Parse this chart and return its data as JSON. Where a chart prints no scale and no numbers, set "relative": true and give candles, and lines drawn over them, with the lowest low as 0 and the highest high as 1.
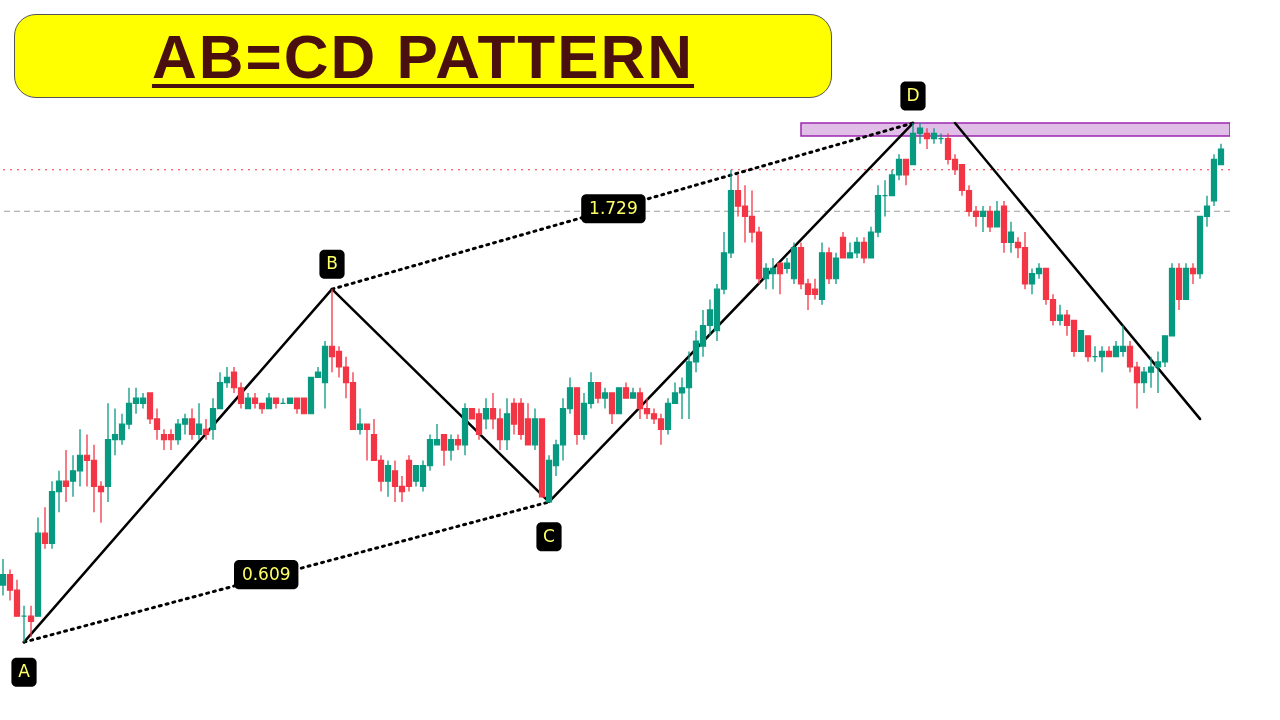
{
  "chart_data": {
    "type": "candlestick",
    "title": "AB=CD PATTERN",
    "relative": true,
    "annotations": [
      "A",
      "B",
      "C",
      "D",
      "0.609",
      "1.729"
    ],
    "categories": [
      null,
      null,
      null,
      null,
      null,
      null,
      null,
      null,
      null,
      null,
      null,
      null,
      null,
      null,
      null,
      null,
      null,
      null,
      null,
      null,
      null,
      null,
      null,
      null,
      null,
      null,
      null,
      null,
      null,
      null,
      null,
      null,
      null,
      null,
      null,
      null,
      null,
      null,
      null,
      null,
      null,
      null,
      null,
      null,
      null,
      null,
      null,
      null,
      null,
      null,
      null,
      null,
      null,
      null,
      null,
      null,
      null,
      null,
      null,
      null,
      null,
      null,
      null,
      null,
      null,
      null,
      null,
      null,
      null,
      null,
      null,
      null,
      null,
      null,
      null,
      null,
      null,
      null,
      null,
      null,
      null,
      null,
      null,
      null,
      null,
      null,
      null,
      null,
      null,
      null,
      null,
      null,
      null,
      null,
      null,
      null,
      null,
      null,
      null,
      null,
      null,
      null,
      null,
      null,
      null,
      null,
      null,
      null,
      null,
      null,
      null,
      null,
      null,
      null,
      null,
      null,
      null,
      null,
      null,
      null,
      null,
      null,
      null,
      null,
      null,
      null,
      null,
      null,
      null,
      null,
      null,
      null,
      null,
      null,
      null,
      null,
      null,
      null,
      null,
      null,
      null,
      null,
      null,
      null,
      null,
      null,
      null,
      null,
      null,
      null,
      null,
      null,
      null,
      null,
      null,
      null,
      null,
      null,
      null,
      null,
      null,
      null,
      null,
      null,
      null,
      null,
      null,
      null,
      null,
      null,
      null,
      null,
      null,
      null,
      null
    ],
    "ohlc": [
      [
        0.11,
        0.16,
        0.09,
        0.13
      ],
      [
        0.13,
        0.14,
        0.08,
        0.1
      ],
      [
        0.1,
        0.12,
        0.05,
        0.05
      ],
      [
        0.05,
        0.07,
        0.0,
        0.05
      ],
      [
        0.05,
        0.07,
        0.01,
        0.04
      ],
      [
        0.05,
        0.24,
        0.05,
        0.21
      ],
      [
        0.21,
        0.26,
        0.18,
        0.19
      ],
      [
        0.19,
        0.31,
        0.18,
        0.29
      ],
      [
        0.29,
        0.33,
        0.25,
        0.31
      ],
      [
        0.31,
        0.37,
        0.27,
        0.3
      ],
      [
        0.31,
        0.36,
        0.28,
        0.33
      ],
      [
        0.33,
        0.41,
        0.3,
        0.36
      ],
      [
        0.36,
        0.4,
        0.3,
        0.35
      ],
      [
        0.35,
        0.38,
        0.25,
        0.3
      ],
      [
        0.3,
        0.31,
        0.23,
        0.29
      ],
      [
        0.3,
        0.46,
        0.27,
        0.39
      ],
      [
        0.39,
        0.45,
        0.36,
        0.4
      ],
      [
        0.39,
        0.44,
        0.38,
        0.42
      ],
      [
        0.42,
        0.49,
        0.41,
        0.46
      ],
      [
        0.46,
        0.49,
        0.44,
        0.47
      ],
      [
        0.46,
        0.48,
        0.45,
        0.47
      ],
      [
        0.48,
        0.48,
        0.42,
        0.43
      ],
      [
        0.43,
        0.45,
        0.39,
        0.41
      ],
      [
        0.4,
        0.41,
        0.37,
        0.39
      ],
      [
        0.4,
        0.41,
        0.37,
        0.39
      ],
      [
        0.39,
        0.43,
        0.38,
        0.42
      ],
      [
        0.42,
        0.44,
        0.4,
        0.43
      ],
      [
        0.43,
        0.45,
        0.39,
        0.4
      ],
      [
        0.4,
        0.46,
        0.39,
        0.42
      ],
      [
        0.41,
        0.43,
        0.39,
        0.4
      ],
      [
        0.41,
        0.47,
        0.39,
        0.45
      ],
      [
        0.45,
        0.52,
        0.45,
        0.5
      ],
      [
        0.5,
        0.53,
        0.49,
        0.51
      ],
      [
        0.52,
        0.53,
        0.48,
        0.49
      ],
      [
        0.49,
        0.5,
        0.45,
        0.46
      ],
      [
        0.45,
        0.48,
        0.45,
        0.47
      ],
      [
        0.47,
        0.48,
        0.45,
        0.46
      ],
      [
        0.46,
        0.46,
        0.44,
        0.45
      ],
      [
        0.45,
        0.48,
        0.45,
        0.47
      ],
      [
        0.47,
        0.47,
        0.45,
        0.46
      ],
      [
        0.46,
        0.47,
        0.46,
        0.46
      ],
      [
        0.46,
        0.47,
        0.46,
        0.47
      ],
      [
        0.47,
        0.47,
        0.44,
        0.45
      ],
      [
        0.47,
        0.47,
        0.44,
        0.44
      ],
      [
        0.44,
        0.51,
        0.44,
        0.51
      ],
      [
        0.51,
        0.53,
        0.51,
        0.52
      ],
      [
        0.5,
        0.58,
        0.45,
        0.57
      ],
      [
        0.57,
        0.68,
        0.52,
        0.55
      ],
      [
        0.56,
        0.57,
        0.51,
        0.53
      ],
      [
        0.53,
        0.55,
        0.47,
        0.5
      ],
      [
        0.5,
        0.52,
        0.41,
        0.41
      ],
      [
        0.41,
        0.45,
        0.4,
        0.42
      ],
      [
        0.42,
        0.42,
        0.35,
        0.41
      ],
      [
        0.4,
        0.43,
        0.35,
        0.35
      ],
      [
        0.35,
        0.36,
        0.29,
        0.31
      ],
      [
        0.31,
        0.35,
        0.28,
        0.34
      ],
      [
        0.33,
        0.35,
        0.27,
        0.3
      ],
      [
        0.3,
        0.32,
        0.27,
        0.29
      ],
      [
        0.35,
        0.36,
        0.29,
        0.3
      ],
      [
        0.31,
        0.34,
        0.3,
        0.34
      ],
      [
        0.3,
        0.35,
        0.29,
        0.34
      ],
      [
        0.34,
        0.4,
        0.33,
        0.39
      ],
      [
        0.38,
        0.42,
        0.38,
        0.39
      ],
      [
        0.4,
        0.4,
        0.34,
        0.37
      ],
      [
        0.37,
        0.4,
        0.35,
        0.39
      ],
      [
        0.39,
        0.4,
        0.37,
        0.38
      ],
      [
        0.38,
        0.46,
        0.36,
        0.45
      ],
      [
        0.45,
        0.45,
        0.43,
        0.43
      ],
      [
        0.44,
        0.45,
        0.39,
        0.4
      ],
      [
        0.43,
        0.47,
        0.41,
        0.45
      ],
      [
        0.45,
        0.48,
        0.41,
        0.43
      ],
      [
        0.43,
        0.45,
        0.37,
        0.39
      ],
      [
        0.39,
        0.47,
        0.37,
        0.44
      ],
      [
        0.46,
        0.47,
        0.4,
        0.42
      ],
      [
        0.46,
        0.47,
        0.39,
        0.4
      ],
      [
        0.43,
        0.46,
        0.38,
        0.38
      ],
      [
        0.38,
        0.45,
        0.37,
        0.43
      ],
      [
        0.43,
        0.43,
        0.28,
        0.28
      ],
      [
        0.27,
        0.36,
        0.27,
        0.35
      ],
      [
        0.34,
        0.39,
        0.32,
        0.38
      ],
      [
        0.38,
        0.47,
        0.35,
        0.45
      ],
      [
        0.45,
        0.51,
        0.44,
        0.49
      ],
      [
        0.49,
        0.49,
        0.38,
        0.4
      ],
      [
        0.4,
        0.48,
        0.39,
        0.46
      ],
      [
        0.46,
        0.52,
        0.45,
        0.5
      ],
      [
        0.5,
        0.5,
        0.46,
        0.47
      ],
      [
        0.47,
        0.49,
        0.45,
        0.48
      ],
      [
        0.48,
        0.48,
        0.42,
        0.44
      ],
      [
        0.44,
        0.49,
        0.44,
        0.49
      ],
      [
        0.49,
        0.5,
        0.47,
        0.47
      ],
      [
        0.47,
        0.49,
        0.47,
        0.48
      ],
      [
        0.48,
        0.49,
        0.43,
        0.45
      ],
      [
        0.45,
        0.47,
        0.43,
        0.44
      ],
      [
        0.44,
        0.45,
        0.42,
        0.43
      ],
      [
        0.43,
        0.44,
        0.38,
        0.41
      ],
      [
        0.41,
        0.47,
        0.4,
        0.46
      ],
      [
        0.46,
        0.5,
        0.46,
        0.48
      ],
      [
        0.48,
        0.51,
        0.43,
        0.49
      ],
      [
        0.49,
        0.56,
        0.43,
        0.54
      ],
      [
        0.54,
        0.6,
        0.52,
        0.58
      ],
      [
        0.57,
        0.64,
        0.55,
        0.61
      ],
      [
        0.61,
        0.66,
        0.59,
        0.64
      ],
      [
        0.6,
        0.69,
        0.58,
        0.68
      ],
      [
        0.68,
        0.79,
        0.67,
        0.75
      ],
      [
        0.75,
        0.91,
        0.74,
        0.87
      ],
      [
        0.87,
        0.9,
        0.82,
        0.84
      ],
      [
        0.84,
        0.88,
        0.77,
        0.82
      ],
      [
        0.82,
        0.87,
        0.77,
        0.79
      ],
      [
        0.79,
        0.8,
        0.69,
        0.7
      ],
      [
        0.7,
        0.73,
        0.68,
        0.72
      ],
      [
        0.71,
        0.74,
        0.68,
        0.72
      ],
      [
        0.73,
        0.73,
        0.67,
        0.71
      ],
      [
        0.72,
        0.74,
        0.71,
        0.73
      ],
      [
        0.7,
        0.77,
        0.69,
        0.76
      ],
      [
        0.76,
        0.77,
        0.68,
        0.69
      ],
      [
        0.69,
        0.7,
        0.64,
        0.67
      ],
      [
        0.68,
        0.7,
        0.66,
        0.67
      ],
      [
        0.66,
        0.77,
        0.65,
        0.75
      ],
      [
        0.75,
        0.76,
        0.69,
        0.7
      ],
      [
        0.7,
        0.75,
        0.69,
        0.74
      ],
      [
        0.78,
        0.79,
        0.74,
        0.74
      ],
      [
        0.74,
        0.77,
        0.74,
        0.75
      ],
      [
        0.75,
        0.78,
        0.74,
        0.77
      ],
      [
        0.77,
        0.78,
        0.73,
        0.74
      ],
      [
        0.74,
        0.8,
        0.74,
        0.79
      ],
      [
        0.79,
        0.88,
        0.78,
        0.86
      ],
      [
        0.86,
        0.89,
        0.82,
        0.86
      ],
      [
        0.86,
        0.91,
        0.86,
        0.9
      ],
      [
        0.9,
        0.94,
        0.89,
        0.93
      ],
      [
        0.93,
        0.93,
        0.88,
        0.9
      ],
      [
        0.92,
        1.0,
        0.92,
        0.98
      ],
      [
        0.98,
        1.0,
        0.96,
        0.99
      ],
      [
        0.98,
        0.99,
        0.95,
        0.97
      ],
      [
        0.97,
        0.99,
        0.96,
        0.98
      ],
      [
        0.97,
        0.98,
        0.96,
        0.97
      ],
      [
        0.97,
        0.98,
        0.92,
        0.93
      ],
      [
        0.93,
        0.94,
        0.9,
        0.91
      ],
      [
        0.92,
        0.92,
        0.86,
        0.87
      ],
      [
        0.87,
        0.88,
        0.82,
        0.83
      ],
      [
        0.83,
        0.84,
        0.8,
        0.82
      ],
      [
        0.82,
        0.84,
        0.79,
        0.83
      ],
      [
        0.83,
        0.84,
        0.79,
        0.8
      ],
      [
        0.8,
        0.85,
        0.8,
        0.83
      ],
      [
        0.84,
        0.85,
        0.75,
        0.77
      ],
      [
        0.77,
        0.81,
        0.75,
        0.79
      ],
      [
        0.77,
        0.78,
        0.74,
        0.76
      ],
      [
        0.76,
        0.79,
        0.68,
        0.69
      ],
      [
        0.69,
        0.72,
        0.67,
        0.71
      ],
      [
        0.71,
        0.73,
        0.7,
        0.72
      ],
      [
        0.72,
        0.72,
        0.65,
        0.66
      ],
      [
        0.66,
        0.67,
        0.61,
        0.62
      ],
      [
        0.62,
        0.65,
        0.61,
        0.63
      ],
      [
        0.63,
        0.64,
        0.59,
        0.61
      ],
      [
        0.62,
        0.62,
        0.55,
        0.56
      ],
      [
        0.56,
        0.6,
        0.56,
        0.6
      ],
      [
        0.59,
        0.59,
        0.54,
        0.55
      ],
      [
        0.55,
        0.57,
        0.54,
        0.55
      ],
      [
        0.55,
        0.57,
        0.52,
        0.56
      ],
      [
        0.56,
        0.57,
        0.55,
        0.55
      ],
      [
        0.55,
        0.58,
        0.55,
        0.57
      ],
      [
        0.56,
        0.61,
        0.55,
        0.57
      ],
      [
        0.57,
        0.58,
        0.52,
        0.53
      ],
      [
        0.53,
        0.54,
        0.45,
        0.5
      ],
      [
        0.5,
        0.53,
        0.48,
        0.52
      ],
      [
        0.52,
        0.55,
        0.49,
        0.53
      ],
      [
        0.53,
        0.56,
        0.48,
        0.54
      ],
      [
        0.54,
        0.59,
        0.53,
        0.59
      ],
      [
        0.59,
        0.73,
        0.59,
        0.72
      ],
      [
        0.72,
        0.73,
        0.64,
        0.66
      ],
      [
        0.66,
        0.73,
        0.66,
        0.72
      ],
      [
        0.72,
        0.73,
        0.69,
        0.71
      ],
      [
        0.71,
        0.82,
        0.7,
        0.82
      ],
      [
        0.82,
        0.86,
        0.8,
        0.84
      ],
      [
        0.85,
        0.94,
        0.84,
        0.93
      ],
      [
        0.92,
        0.96,
        0.92,
        0.95
      ]
    ],
    "series": [
      {
        "type": "line",
        "color": "#000000",
        "values": [
          null,
          null,
          null,
          0.0,
          null,
          null,
          null,
          null,
          null,
          null,
          null,
          null,
          null,
          null,
          null,
          null,
          null,
          null,
          null,
          null,
          null,
          null,
          null,
          null,
          null,
          null,
          null,
          null,
          null,
          null,
          null,
          null,
          null,
          null,
          null,
          null,
          null,
          null,
          null,
          null,
          null,
          null,
          null,
          null,
          null,
          null,
          null,
          0.68,
          null,
          null,
          null,
          null,
          null,
          null,
          null,
          null,
          null,
          null,
          null,
          null,
          null,
          null,
          null,
          null,
          null,
          null,
          null,
          null,
          null,
          null,
          null,
          null,
          null,
          null,
          null,
          null,
          null,
          null,
          0.27,
          null,
          null,
          null,
          null,
          null,
          null,
          null,
          null,
          null,
          null,
          null,
          null,
          null,
          null,
          null,
          null,
          null,
          null,
          null,
          null,
          null,
          null,
          null,
          null,
          null,
          null,
          null,
          null,
          null,
          null,
          null,
          null,
          null,
          null,
          null,
          null,
          null,
          null,
          null,
          null,
          null,
          null,
          null,
          null,
          null,
          null,
          null,
          null,
          null,
          null,
          null,
          1.0,
          null,
          null,
          null,
          null,
          null,
          null,
          null,
          null,
          null,
          null,
          null,
          null,
          null,
          null,
          null,
          null,
          null,
          null,
          null,
          null,
          null,
          null,
          null,
          null,
          null,
          null,
          null,
          null,
          null,
          null,
          null,
          null,
          null,
          null,
          null,
          null,
          null,
          null,
          null,
          null,
          null,
          null,
          null,
          null
        ]
      },
      {
        "type": "line",
        "color": "#000000",
        "values": [
          null,
          null,
          null,
          null,
          null,
          null,
          null,
          null,
          null,
          null,
          null,
          null,
          null,
          null,
          null,
          null,
          null,
          null,
          null,
          null,
          null,
          null,
          null,
          null,
          null,
          null,
          null,
          null,
          null,
          null,
          null,
          null,
          null,
          null,
          null,
          null,
          null,
          null,
          null,
          null,
          null,
          null,
          null,
          null,
          null,
          null,
          null,
          null,
          null,
          null,
          null,
          null,
          null,
          null,
          null,
          null,
          null,
          null,
          null,
          null,
          null,
          null,
          null,
          null,
          null,
          null,
          null,
          null,
          null,
          null,
          null,
          null,
          null,
          null,
          null,
          null,
          null,
          null,
          null,
          null,
          null,
          null,
          null,
          null,
          null,
          null,
          null,
          null,
          null,
          null,
          null,
          null,
          null,
          null,
          null,
          null,
          null,
          null,
          null,
          null,
          null,
          null,
          null,
          null,
          null,
          null,
          null,
          null,
          null,
          null,
          null,
          null,
          null,
          null,
          null,
          null,
          null,
          null,
          null,
          null,
          null,
          null,
          null,
          null,
          null,
          null,
          null,
          null,
          null,
          null,
          null,
          null,
          null,
          null,
          null,
          null,
          1.0,
          null,
          null,
          null,
          null,
          null,
          null,
          null,
          null,
          null,
          null,
          null,
          null,
          null,
          null,
          null,
          null,
          null,
          null,
          null,
          null,
          null,
          null,
          null,
          null,
          null,
          null,
          null,
          null,
          null,
          null,
          null,
          null,
          null,
          null,
          0.43,
          null,
          null,
          null
        ]
      },
      {
        "type": "line",
        "color": "#000000",
        "line_style": "dotted",
        "values": [
          null,
          null,
          null,
          0.0,
          null,
          null,
          null,
          null,
          null,
          null,
          null,
          null,
          null,
          null,
          null,
          null,
          null,
          null,
          null,
          null,
          null,
          null,
          null,
          null,
          null,
          null,
          null,
          null,
          null,
          null,
          null,
          null,
          null,
          null,
          null,
          null,
          null,
          null,
          null,
          null,
          null,
          null,
          null,
          null,
          null,
          null,
          null,
          null,
          null,
          null,
          null,
          null,
          null,
          null,
          null,
          null,
          null,
          null,
          null,
          null,
          null,
          null,
          null,
          null,
          null,
          null,
          null,
          null,
          null,
          null,
          null,
          null,
          null,
          null,
          null,
          null,
          null,
          null,
          0.27,
          null,
          null,
          null,
          null,
          null,
          null,
          null,
          null,
          null,
          null,
          null,
          null,
          null,
          null,
          null,
          null,
          null,
          null,
          null,
          null,
          null,
          null,
          null,
          null,
          null,
          null,
          null,
          null,
          null,
          null,
          null,
          null,
          null,
          null,
          null,
          null,
          null,
          null,
          null,
          null,
          null,
          null,
          null,
          null,
          null,
          null,
          null,
          null,
          null,
          null,
          null,
          null,
          null,
          null,
          null,
          null,
          null,
          null,
          null,
          null,
          null,
          null,
          null,
          null,
          null,
          null,
          null,
          null,
          null,
          null,
          null,
          null,
          null,
          null,
          null,
          null,
          null,
          null,
          null,
          null,
          null,
          null,
          null,
          null,
          null,
          null,
          null,
          null,
          null,
          null,
          null,
          null,
          null,
          null,
          null,
          null
        ]
      },
      {
        "type": "line",
        "color": "#000000",
        "line_style": "dotted",
        "values": [
          null,
          null,
          null,
          null,
          null,
          null,
          null,
          null,
          null,
          null,
          null,
          null,
          null,
          null,
          null,
          null,
          null,
          null,
          null,
          null,
          null,
          null,
          null,
          null,
          null,
          null,
          null,
          null,
          null,
          null,
          null,
          null,
          null,
          null,
          null,
          null,
          null,
          null,
          null,
          null,
          null,
          null,
          null,
          null,
          null,
          null,
          null,
          0.68,
          null,
          null,
          null,
          null,
          null,
          null,
          null,
          null,
          null,
          null,
          null,
          null,
          null,
          null,
          null,
          null,
          null,
          null,
          null,
          null,
          null,
          null,
          null,
          null,
          null,
          null,
          null,
          null,
          null,
          null,
          null,
          null,
          null,
          null,
          null,
          null,
          null,
          null,
          null,
          null,
          null,
          null,
          null,
          null,
          null,
          null,
          null,
          null,
          null,
          null,
          null,
          null,
          null,
          null,
          null,
          null,
          null,
          null,
          null,
          null,
          null,
          null,
          null,
          null,
          null,
          null,
          null,
          null,
          null,
          null,
          null,
          null,
          null,
          null,
          null,
          null,
          null,
          null,
          null,
          null,
          null,
          null,
          1.0,
          null,
          null,
          null,
          null,
          null,
          null,
          null,
          null,
          null,
          null,
          null,
          null,
          null,
          null,
          null,
          null,
          null,
          null,
          null,
          null,
          null,
          null,
          null,
          null,
          null,
          null,
          null,
          null,
          null,
          null,
          null,
          null,
          null,
          null,
          null,
          null,
          null,
          null,
          null,
          null,
          null,
          null,
          null,
          null
        ]
      }
    ],
    "ref_lines": [
      {
        "axis": "y",
        "value": 0.83,
        "color": "#9e9e9e",
        "line_style": "dashed"
      },
      {
        "axis": "y",
        "value": 0.91,
        "color": "#f23645",
        "line_style": "dotted"
      }
    ],
    "bands": [
      {
        "axis": "y",
        "from": 0.975,
        "to": 1.0,
        "color": "#e1bee7"
      }
    ]
  }
}
